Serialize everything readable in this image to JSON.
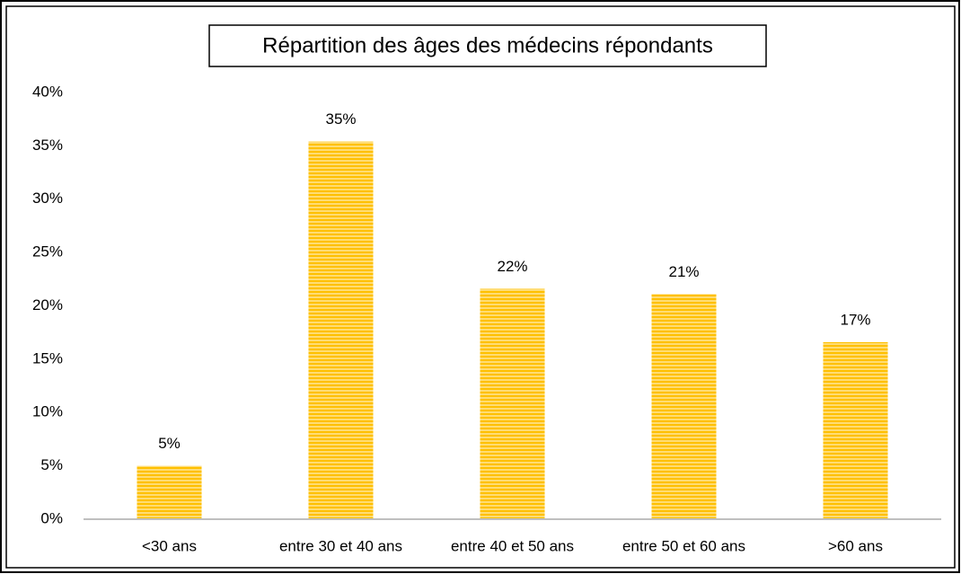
{
  "chart_data": {
    "type": "bar",
    "title": "Répartition des âges des médecins répondants",
    "categories": [
      "<30 ans",
      "entre 30 et 40 ans",
      "entre 40 et 50 ans",
      "entre 50 et 60 ans",
      ">60 ans"
    ],
    "values": [
      5.0,
      35.4,
      21.6,
      21.1,
      16.6
    ],
    "value_labels": [
      "5%",
      "35%",
      "22%",
      "21%",
      "17%"
    ],
    "color": "#ffc000",
    "ylim": [
      0,
      40
    ],
    "yticks": [
      {
        "value": 0,
        "label": "0%"
      },
      {
        "value": 5,
        "label": "5%"
      },
      {
        "value": 10,
        "label": "10%"
      },
      {
        "value": 15,
        "label": "15%"
      },
      {
        "value": 20,
        "label": "20%"
      },
      {
        "value": 25,
        "label": "25%"
      },
      {
        "value": 30,
        "label": "30%"
      },
      {
        "value": 35,
        "label": "35%"
      },
      {
        "value": 40,
        "label": "40%"
      }
    ],
    "grid": false
  }
}
